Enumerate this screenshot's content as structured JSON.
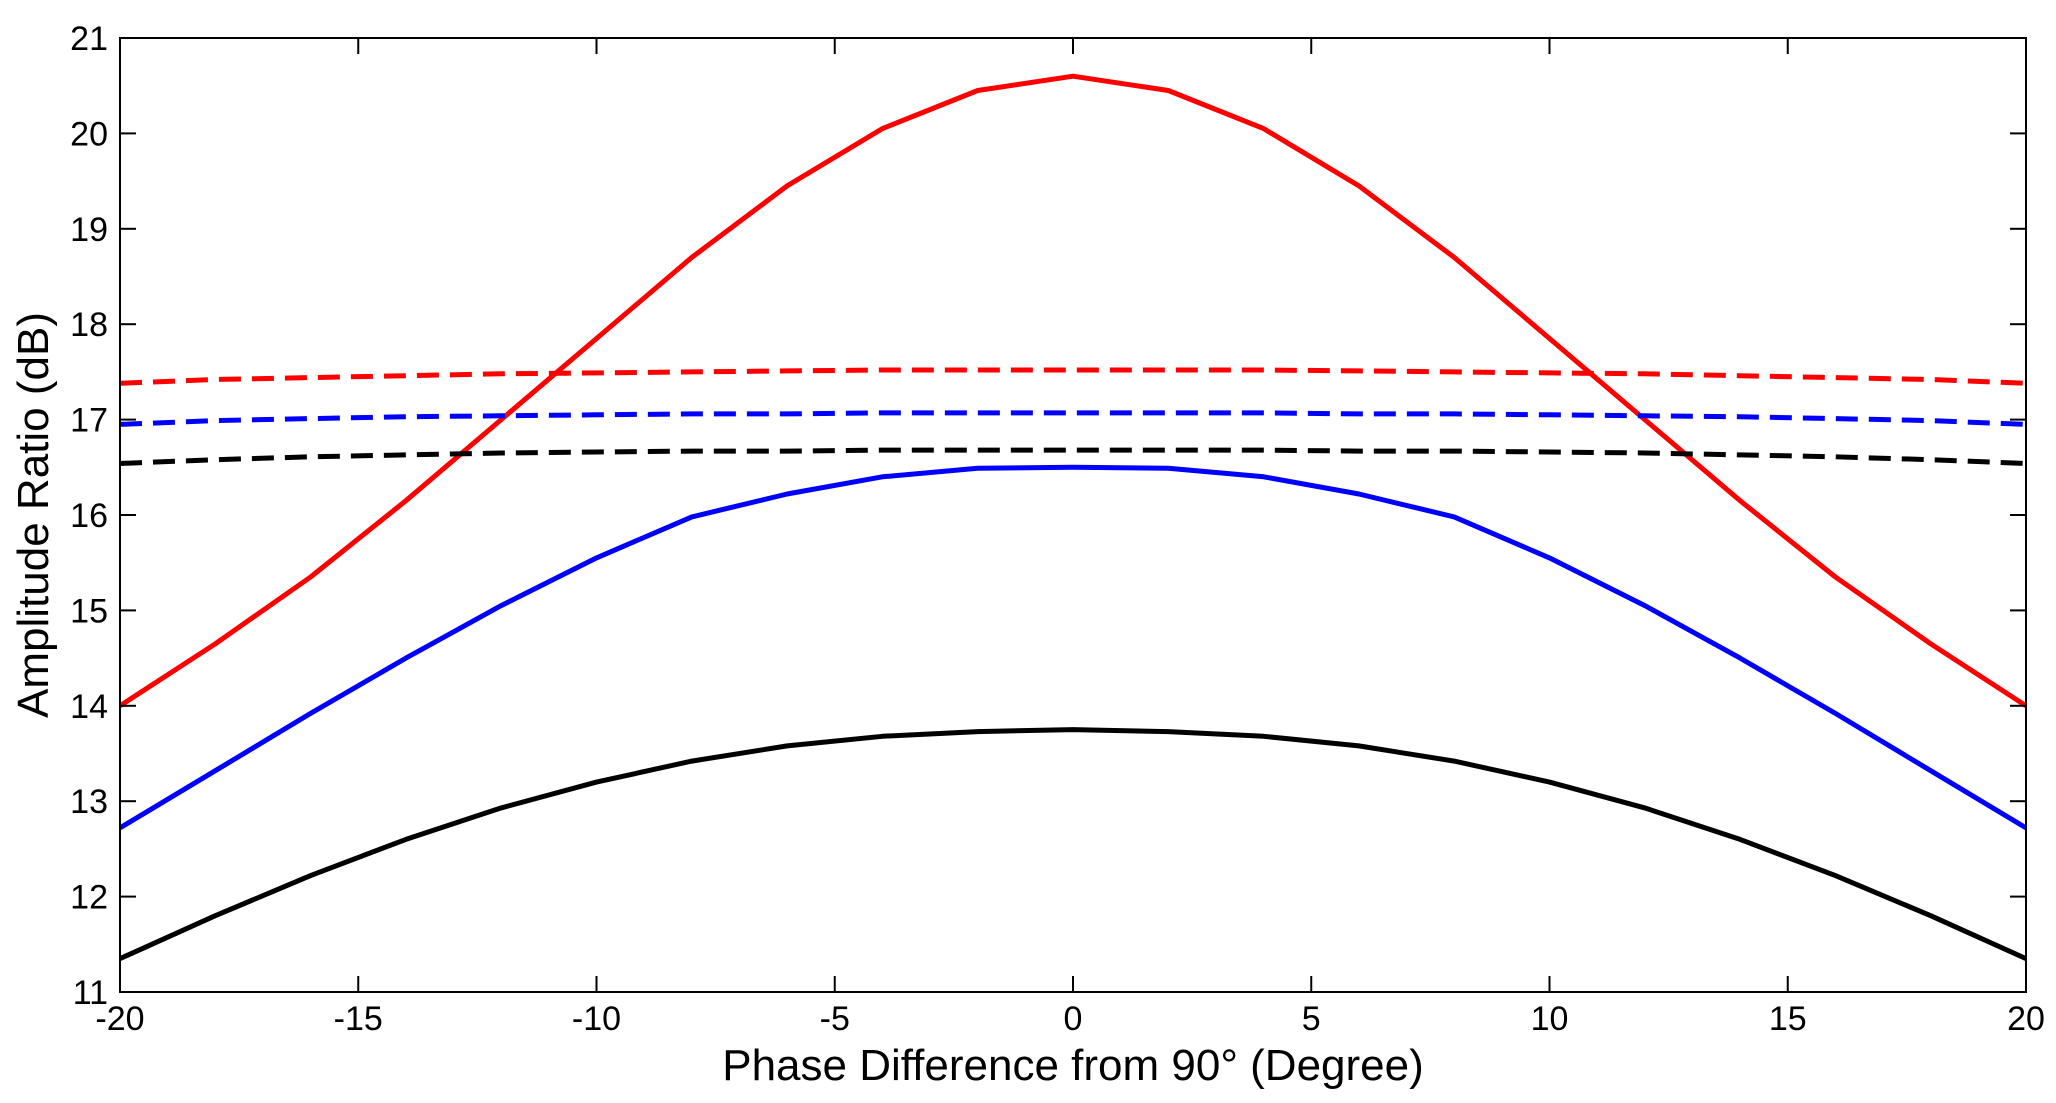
{
  "chart_data": {
    "type": "line",
    "title": "",
    "xlabel": "Phase Difference from 90° (Degree)",
    "ylabel": "Amplitude Ratio (dB)",
    "xlim": [
      -20,
      20
    ],
    "ylim": [
      11,
      21
    ],
    "xticks": [
      -20,
      -15,
      -10,
      -5,
      0,
      5,
      10,
      15,
      20
    ],
    "yticks": [
      11,
      12,
      13,
      14,
      15,
      16,
      17,
      18,
      19,
      20,
      21
    ],
    "grid": false,
    "legend": "none",
    "x": [
      -20,
      -18,
      -16,
      -14,
      -12,
      -10,
      -8,
      -6,
      -4,
      -2,
      0,
      2,
      4,
      6,
      8,
      10,
      12,
      14,
      16,
      18,
      20
    ],
    "series": [
      {
        "name": "red-solid",
        "color": "#ff0000",
        "style": "solid",
        "values": [
          14.0,
          14.65,
          15.35,
          16.15,
          17.0,
          17.85,
          18.7,
          19.45,
          20.05,
          20.45,
          20.6,
          20.45,
          20.05,
          19.45,
          18.7,
          17.85,
          17.0,
          16.15,
          15.35,
          14.65,
          14.0
        ]
      },
      {
        "name": "red-dashed",
        "color": "#ff0000",
        "style": "dashed",
        "values": [
          17.38,
          17.42,
          17.44,
          17.46,
          17.48,
          17.49,
          17.5,
          17.51,
          17.52,
          17.52,
          17.52,
          17.52,
          17.52,
          17.51,
          17.5,
          17.49,
          17.48,
          17.46,
          17.44,
          17.42,
          17.38
        ]
      },
      {
        "name": "blue-dashed",
        "color": "#0000ff",
        "style": "dashed",
        "values": [
          16.95,
          16.99,
          17.01,
          17.03,
          17.04,
          17.05,
          17.06,
          17.06,
          17.07,
          17.07,
          17.07,
          17.07,
          17.07,
          17.06,
          17.06,
          17.05,
          17.04,
          17.03,
          17.01,
          16.99,
          16.95
        ]
      },
      {
        "name": "black-dashed",
        "color": "#000000",
        "style": "dashed",
        "values": [
          16.54,
          16.58,
          16.61,
          16.63,
          16.65,
          16.66,
          16.67,
          16.67,
          16.68,
          16.68,
          16.68,
          16.68,
          16.68,
          16.67,
          16.67,
          16.66,
          16.65,
          16.63,
          16.61,
          16.58,
          16.54
        ]
      },
      {
        "name": "blue-solid",
        "color": "#0000ff",
        "style": "solid",
        "values": [
          12.72,
          13.32,
          13.92,
          14.5,
          15.05,
          15.55,
          15.98,
          16.22,
          16.4,
          16.49,
          16.5,
          16.49,
          16.4,
          16.22,
          15.98,
          15.55,
          15.05,
          14.5,
          13.92,
          13.32,
          12.72
        ]
      },
      {
        "name": "black-solid",
        "color": "#000000",
        "style": "solid",
        "values": [
          11.35,
          11.8,
          12.22,
          12.6,
          12.93,
          13.2,
          13.42,
          13.58,
          13.68,
          13.73,
          13.75,
          13.73,
          13.68,
          13.58,
          13.42,
          13.2,
          12.93,
          12.6,
          12.22,
          11.8,
          11.35
        ]
      }
    ]
  }
}
